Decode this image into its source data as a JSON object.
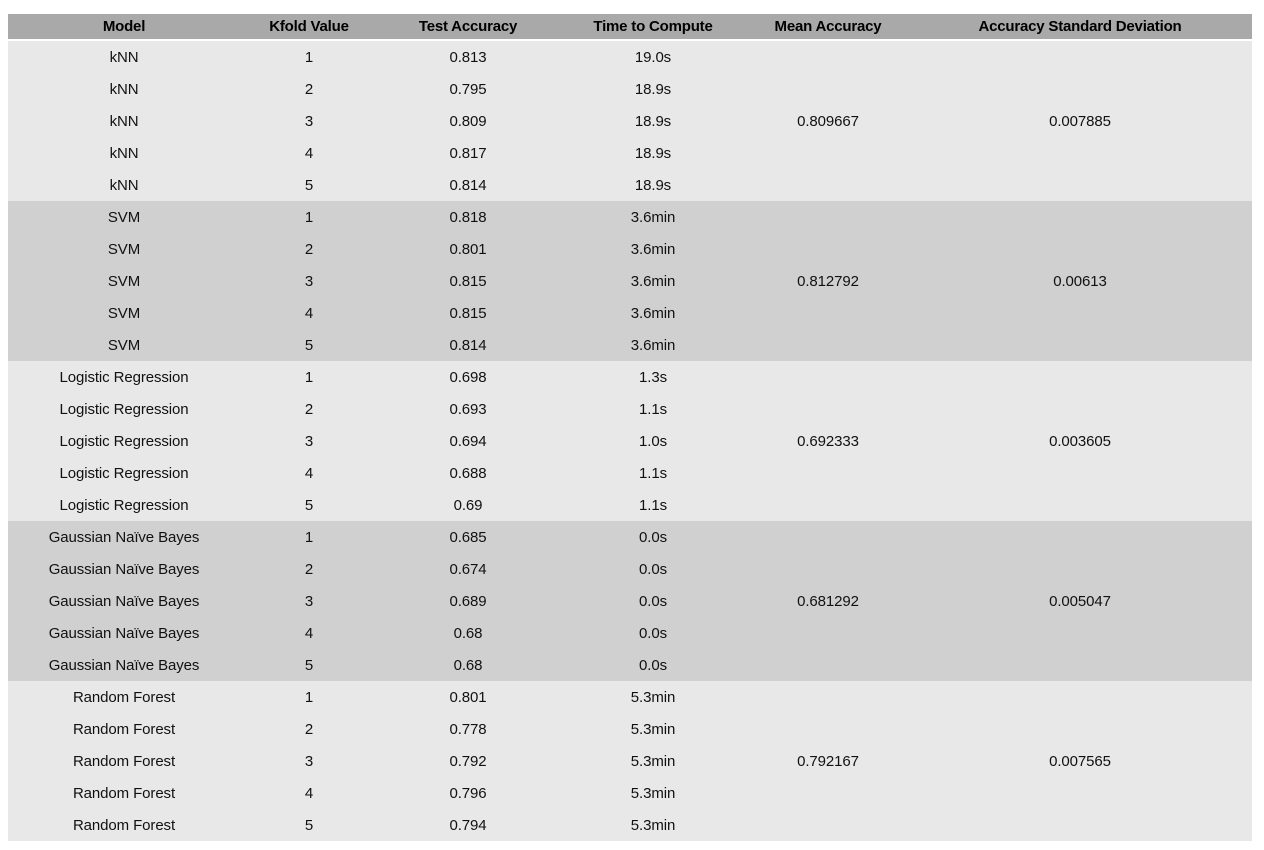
{
  "colors": {
    "header_bg": "#a9a9a9",
    "band_light": "#e8e8e8",
    "band_dark": "#d0d0d0",
    "text": "#111111",
    "page_bg": "#ffffff"
  },
  "table": {
    "columns": [
      {
        "id": "model",
        "label": "Model"
      },
      {
        "id": "kfold",
        "label": "Kfold Value"
      },
      {
        "id": "test_accuracy",
        "label": "Test Accuracy"
      },
      {
        "id": "time",
        "label": "Time to Compute"
      },
      {
        "id": "mean_accuracy",
        "label": "Mean Accuracy"
      },
      {
        "id": "accuracy_std",
        "label": "Accuracy Standard Deviation"
      }
    ],
    "groups": [
      {
        "model": "kNN",
        "band": "light",
        "mean_accuracy": "0.809667",
        "accuracy_std": "0.007885",
        "rows": [
          {
            "kfold": "1",
            "test_accuracy": "0.813",
            "time": "19.0s"
          },
          {
            "kfold": "2",
            "test_accuracy": "0.795",
            "time": "18.9s"
          },
          {
            "kfold": "3",
            "test_accuracy": "0.809",
            "time": "18.9s"
          },
          {
            "kfold": "4",
            "test_accuracy": "0.817",
            "time": "18.9s"
          },
          {
            "kfold": "5",
            "test_accuracy": "0.814",
            "time": "18.9s"
          }
        ]
      },
      {
        "model": "SVM",
        "band": "dark",
        "mean_accuracy": "0.812792",
        "accuracy_std": "0.00613",
        "rows": [
          {
            "kfold": "1",
            "test_accuracy": "0.818",
            "time": "3.6min"
          },
          {
            "kfold": "2",
            "test_accuracy": "0.801",
            "time": "3.6min"
          },
          {
            "kfold": "3",
            "test_accuracy": "0.815",
            "time": "3.6min"
          },
          {
            "kfold": "4",
            "test_accuracy": "0.815",
            "time": "3.6min"
          },
          {
            "kfold": "5",
            "test_accuracy": "0.814",
            "time": "3.6min"
          }
        ]
      },
      {
        "model": "Logistic Regression",
        "band": "light",
        "mean_accuracy": "0.692333",
        "accuracy_std": "0.003605",
        "rows": [
          {
            "kfold": "1",
            "test_accuracy": "0.698",
            "time": "1.3s"
          },
          {
            "kfold": "2",
            "test_accuracy": "0.693",
            "time": "1.1s"
          },
          {
            "kfold": "3",
            "test_accuracy": "0.694",
            "time": "1.0s"
          },
          {
            "kfold": "4",
            "test_accuracy": "0.688",
            "time": "1.1s"
          },
          {
            "kfold": "5",
            "test_accuracy": "0.69",
            "time": "1.1s"
          }
        ]
      },
      {
        "model": "Gaussian Naïve Bayes",
        "band": "dark",
        "mean_accuracy": "0.681292",
        "accuracy_std": "0.005047",
        "rows": [
          {
            "kfold": "1",
            "test_accuracy": "0.685",
            "time": "0.0s"
          },
          {
            "kfold": "2",
            "test_accuracy": "0.674",
            "time": "0.0s"
          },
          {
            "kfold": "3",
            "test_accuracy": "0.689",
            "time": "0.0s"
          },
          {
            "kfold": "4",
            "test_accuracy": "0.68",
            "time": "0.0s"
          },
          {
            "kfold": "5",
            "test_accuracy": "0.68",
            "time": "0.0s"
          }
        ]
      },
      {
        "model": "Random Forest",
        "band": "light",
        "mean_accuracy": "0.792167",
        "accuracy_std": "0.007565",
        "rows": [
          {
            "kfold": "1",
            "test_accuracy": "0.801",
            "time": "5.3min"
          },
          {
            "kfold": "2",
            "test_accuracy": "0.778",
            "time": "5.3min"
          },
          {
            "kfold": "3",
            "test_accuracy": "0.792",
            "time": "5.3min"
          },
          {
            "kfold": "4",
            "test_accuracy": "0.796",
            "time": "5.3min"
          },
          {
            "kfold": "5",
            "test_accuracy": "0.794",
            "time": "5.3min"
          }
        ]
      }
    ]
  }
}
